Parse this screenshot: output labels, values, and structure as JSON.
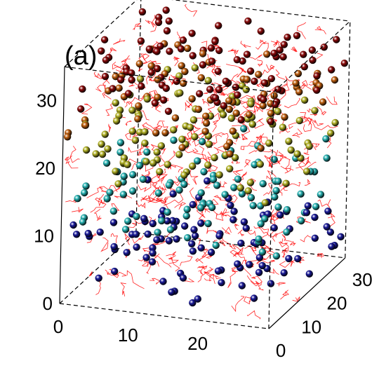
{
  "chart_data": {
    "type": "scatter",
    "panel_label": "(a)",
    "projection": "3d",
    "box": true,
    "z_axis": {
      "ticks": [
        0,
        10,
        20,
        30
      ],
      "range": [
        0,
        35
      ]
    },
    "x_axis": {
      "ticks": [
        0,
        10,
        20
      ],
      "range": [
        0,
        30
      ]
    },
    "y_axis": {
      "ticks": [
        0,
        10,
        20,
        30
      ],
      "range": [
        0,
        30
      ]
    },
    "background_network_color": "#ff0000",
    "series": [
      {
        "color": "#1a1a99",
        "z_band": [
          1,
          10
        ],
        "count": 100
      },
      {
        "color": "#28b4b4",
        "z_band": [
          9,
          18
        ],
        "count": 90
      },
      {
        "color": "#b4b428",
        "z_band": [
          17,
          26
        ],
        "count": 100
      },
      {
        "color": "#c06010",
        "z_band": [
          24,
          30
        ],
        "count": 70
      },
      {
        "color": "#8b0a0a",
        "z_band": [
          28,
          35
        ],
        "count": 95
      }
    ]
  }
}
